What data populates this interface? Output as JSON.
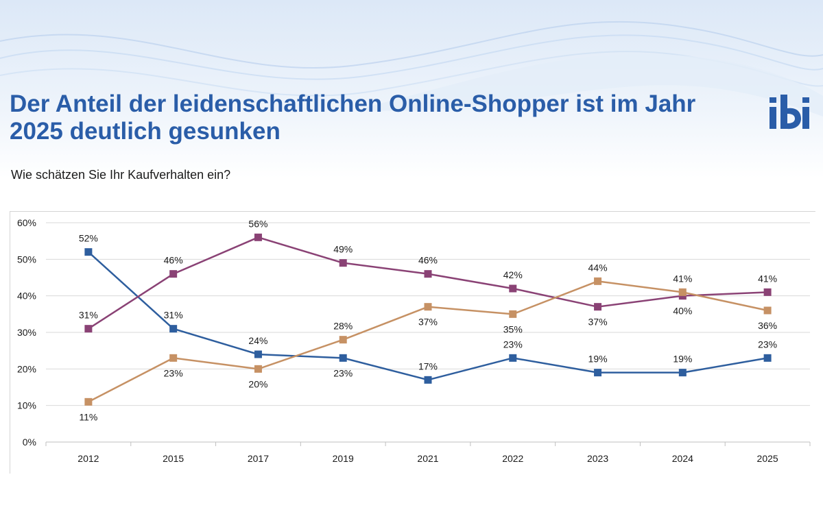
{
  "page": {
    "title": "Der Anteil der leidenschaftlichen Online-Shopper ist im Jahr 2025 deutlich gesunken",
    "question": "Wie schätzen Sie Ihr Kaufverhalten ein?",
    "logo_text": "ibi",
    "colors": {
      "title": "#2a5da8",
      "logo": "#2a5da8",
      "grid": "#d9d9d9"
    }
  },
  "chart_data": {
    "type": "line",
    "title": "",
    "xlabel": "",
    "ylabel": "",
    "categories": [
      "2012",
      "2015",
      "2017",
      "2019",
      "2021",
      "2022",
      "2023",
      "2024",
      "2025"
    ],
    "ylim": [
      0,
      60
    ],
    "yticks": [
      "0%",
      "10%",
      "20%",
      "30%",
      "40%",
      "50%",
      "60%"
    ],
    "yticks_values": [
      0,
      10,
      20,
      30,
      40,
      50,
      60
    ],
    "grid": true,
    "legend": "none",
    "series": [
      {
        "color": "#2e5e9e",
        "values": [
          52,
          31,
          24,
          23,
          17,
          23,
          19,
          19,
          23
        ],
        "labels": [
          "52%",
          "31%",
          "24%",
          "23%",
          "17%",
          "23%",
          "19%",
          "19%",
          "23%"
        ],
        "label_pos": [
          "above",
          "above",
          "above",
          "below",
          "above",
          "above",
          "above",
          "above",
          "above"
        ]
      },
      {
        "color": "#8a4275",
        "values": [
          31,
          46,
          56,
          49,
          46,
          42,
          37,
          40,
          41
        ],
        "labels": [
          "31%",
          "46%",
          "56%",
          "49%",
          "46%",
          "42%",
          "37%",
          "40%",
          "41%"
        ],
        "label_pos": [
          "above",
          "above",
          "above",
          "above",
          "above",
          "above",
          "below",
          "below",
          "above"
        ]
      },
      {
        "color": "#c69164",
        "values": [
          11,
          23,
          20,
          28,
          37,
          35,
          44,
          41,
          36
        ],
        "labels": [
          "11%",
          "23%",
          "20%",
          "28%",
          "37%",
          "35%",
          "44%",
          "41%",
          "36%"
        ],
        "label_pos": [
          "below",
          "below",
          "below",
          "above",
          "below",
          "below",
          "above",
          "above",
          "below"
        ]
      }
    ]
  }
}
